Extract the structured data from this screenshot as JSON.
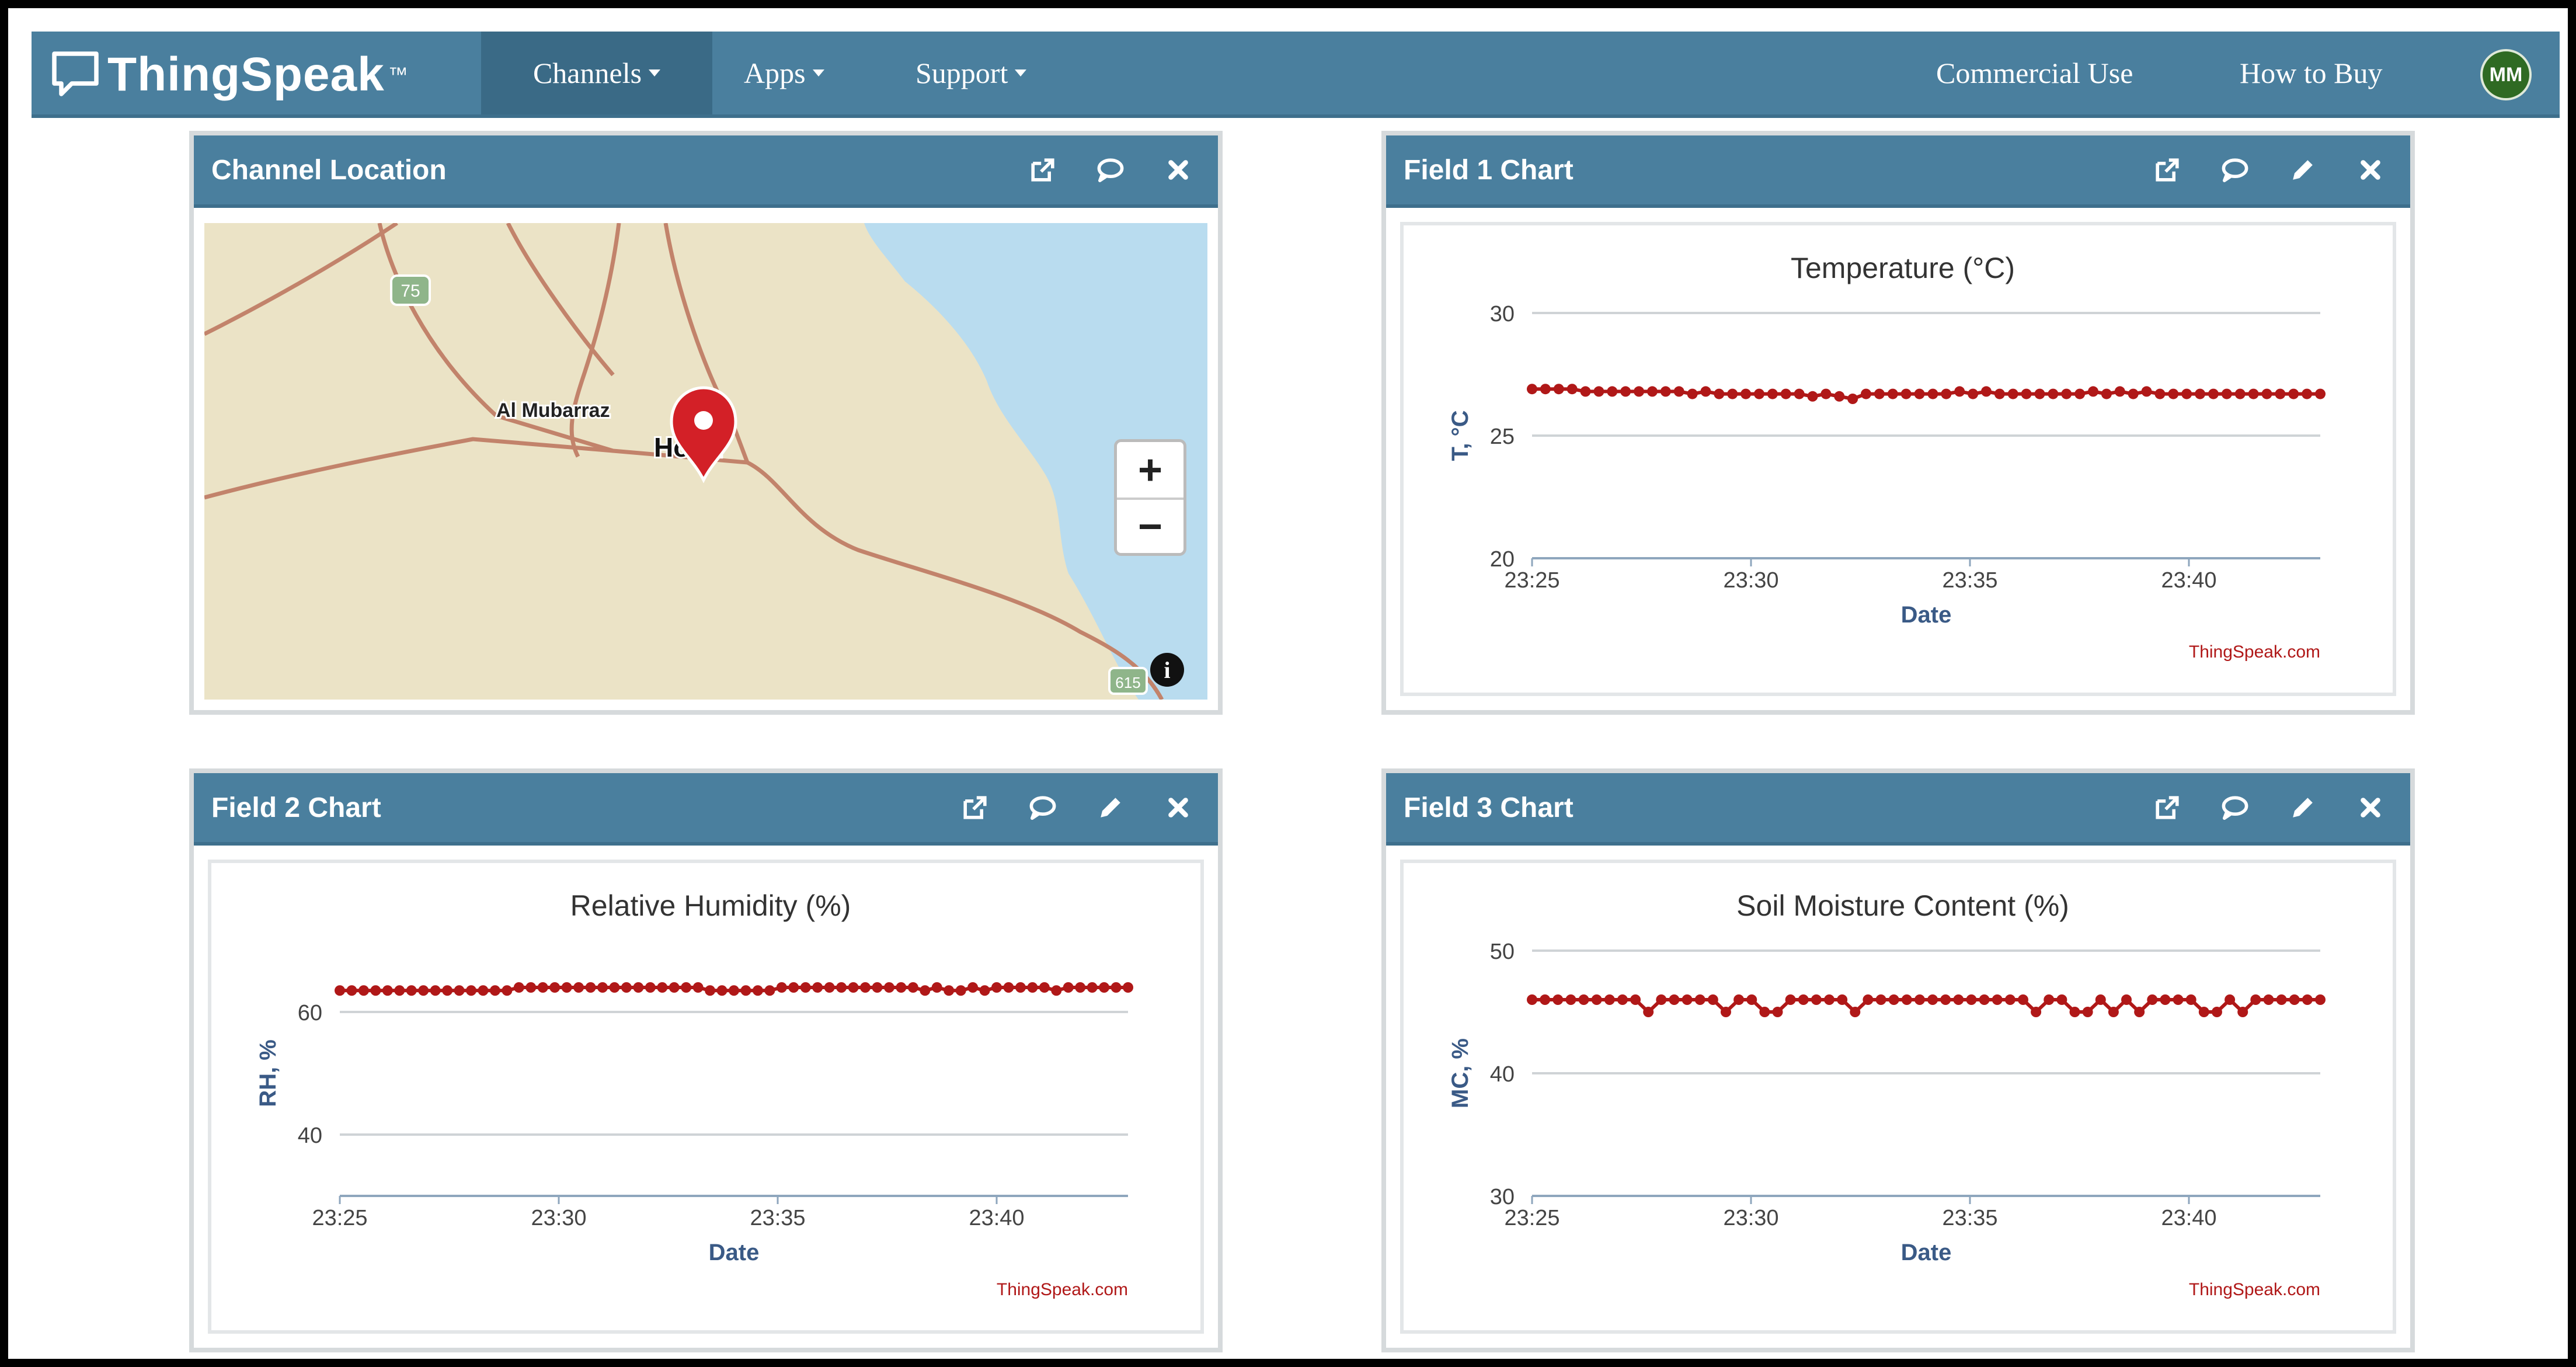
{
  "navbar": {
    "brand": "ThingSpeak",
    "brand_tm": "™",
    "items": [
      {
        "label": "Channels",
        "active": true
      },
      {
        "label": "Apps"
      },
      {
        "label": "Support"
      }
    ],
    "right_links": [
      "Commercial Use",
      "How to Buy"
    ],
    "avatar": "MM"
  },
  "icons": {
    "popout": "external-link-icon",
    "comment": "comment-icon",
    "edit": "pencil-icon",
    "close": "close-icon"
  },
  "panels": {
    "location": {
      "title": "Channel Location",
      "map": {
        "labels": [
          "Al Mubarraz",
          "Hofuf"
        ],
        "route_shield": "75",
        "shield_bottom": "615",
        "zoom_in": "+",
        "zoom_out": "−",
        "info": "i",
        "colors": {
          "land": "#ebe3c6",
          "water": "#b9dcef",
          "road": "#c2836b",
          "marker": "#d32027"
        }
      }
    },
    "field1": {
      "title": "Field 1 Chart"
    },
    "field2": {
      "title": "Field 2 Chart"
    },
    "field3": {
      "title": "Field 3 Chart"
    }
  },
  "chart_data": [
    {
      "type": "line",
      "title": "Temperature (°C)",
      "xlabel": "Date",
      "ylabel": "T, °C",
      "x_ticks": [
        "23:25",
        "23:30",
        "23:35",
        "23:40"
      ],
      "y_ticks": [
        20,
        25,
        30
      ],
      "ylim": [
        20,
        30
      ],
      "x_range": [
        "23:25",
        "23:43"
      ],
      "series": [
        {
          "color": "#b01818",
          "values": [
            26.9,
            26.9,
            26.9,
            26.9,
            26.8,
            26.8,
            26.8,
            26.8,
            26.8,
            26.8,
            26.8,
            26.8,
            26.7,
            26.8,
            26.7,
            26.7,
            26.7,
            26.7,
            26.7,
            26.7,
            26.7,
            26.6,
            26.7,
            26.6,
            26.5,
            26.7,
            26.7,
            26.7,
            26.7,
            26.7,
            26.7,
            26.7,
            26.8,
            26.7,
            26.8,
            26.7,
            26.7,
            26.7,
            26.7,
            26.7,
            26.7,
            26.7,
            26.8,
            26.7,
            26.8,
            26.7,
            26.8,
            26.7,
            26.7,
            26.7,
            26.7,
            26.7,
            26.7,
            26.7,
            26.7,
            26.7,
            26.7,
            26.7,
            26.7,
            26.7
          ]
        }
      ],
      "credit": "ThingSpeak.com"
    },
    {
      "type": "line",
      "title": "Relative Humidity (%)",
      "xlabel": "Date",
      "ylabel": "RH, %",
      "x_ticks": [
        "23:25",
        "23:30",
        "23:35",
        "23:40"
      ],
      "y_ticks": [
        40,
        60
      ],
      "ylim": [
        30,
        70
      ],
      "x_range": [
        "23:25",
        "23:43"
      ],
      "series": [
        {
          "color": "#b01818",
          "values": [
            63.5,
            63.5,
            63.5,
            63.5,
            63.5,
            63.5,
            63.5,
            63.5,
            63.5,
            63.5,
            63.5,
            63.5,
            63.5,
            63.5,
            63.5,
            64,
            64,
            64,
            64,
            64,
            64,
            64,
            64,
            64,
            64,
            64,
            64,
            64,
            64,
            64,
            64,
            63.5,
            63.5,
            63.5,
            63.5,
            63.5,
            63.5,
            64,
            64,
            64,
            64,
            64,
            64,
            64,
            64,
            64,
            64,
            64,
            64,
            63.5,
            64,
            63.5,
            63.5,
            64,
            63.5,
            64,
            64,
            64,
            64,
            64,
            63.5,
            64,
            64,
            64,
            64,
            64,
            64
          ]
        }
      ],
      "credit": "ThingSpeak.com"
    },
    {
      "type": "line",
      "title": "Soil Moisture Content (%)",
      "xlabel": "Date",
      "ylabel": "MC, %",
      "x_ticks": [
        "23:25",
        "23:30",
        "23:35",
        "23:40"
      ],
      "y_ticks": [
        30,
        40,
        50
      ],
      "ylim": [
        30,
        50
      ],
      "x_range": [
        "23:25",
        "23:43"
      ],
      "series": [
        {
          "color": "#b01818",
          "values": [
            46,
            46,
            46,
            46,
            46,
            46,
            46,
            46,
            46,
            45,
            46,
            46,
            46,
            46,
            46,
            45,
            46,
            46,
            45,
            45,
            46,
            46,
            46,
            46,
            46,
            45,
            46,
            46,
            46,
            46,
            46,
            46,
            46,
            46,
            46,
            46,
            46,
            46,
            46,
            45,
            46,
            46,
            45,
            45,
            46,
            45,
            46,
            45,
            46,
            46,
            46,
            46,
            45,
            45,
            46,
            45,
            46,
            46,
            46,
            46,
            46,
            46
          ]
        }
      ],
      "credit": "ThingSpeak.com"
    }
  ]
}
